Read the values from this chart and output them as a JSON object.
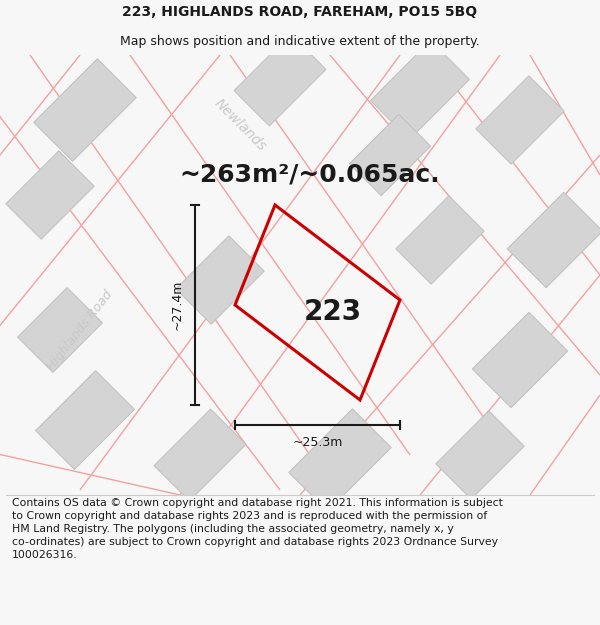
{
  "title_line1": "223, HIGHLANDS ROAD, FAREHAM, PO15 5BQ",
  "title_line2": "Map shows position and indicative extent of the property.",
  "area_text": "~263m²/~0.065ac.",
  "plot_number": "223",
  "dim_width": "~25.3m",
  "dim_height": "~27.4m",
  "road_label_newlands": "Newlands",
  "road_label_highlands": "Highlands Road",
  "footer_text": "Contains OS data © Crown copyright and database right 2021. This information is subject\nto Crown copyright and database rights 2023 and is reproduced with the permission of\nHM Land Registry. The polygons (including the associated geometry, namely x, y\nco-ordinates) are subject to Crown copyright and database rights 2023 Ordnance Survey\n100026316.",
  "bg_color": "#f7f7f7",
  "map_bg": "#f0f0f0",
  "plot_outline_color": "#cc0000",
  "building_fill": "#d4d4d4",
  "building_edge": "#c0c0c0",
  "road_line_color": "#f5a0a0",
  "dim_line_color": "#1a1a1a",
  "road_label_color": "#c8c8c8",
  "title_fontsize": 10,
  "subtitle_fontsize": 9,
  "area_fontsize": 18,
  "plot_num_fontsize": 20,
  "footer_fontsize": 7.8
}
